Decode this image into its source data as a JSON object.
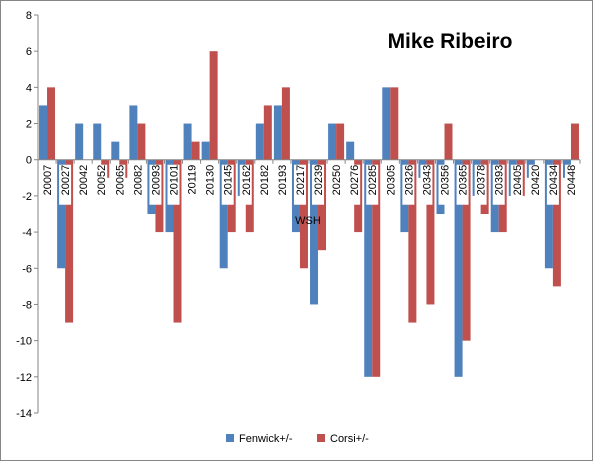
{
  "chart_data": {
    "type": "bar",
    "title": "Mike Ribeiro",
    "categories": [
      "20007",
      "20027",
      "20042",
      "20052",
      "20065",
      "20082",
      "20093",
      "20101",
      "20119",
      "20130",
      "20145",
      "20162",
      "20182",
      "20193",
      "20217",
      "20239",
      "20250",
      "20276",
      "20285",
      "20305",
      "20326",
      "20343",
      "20356",
      "20365",
      "20378",
      "20393",
      "20405",
      "20420",
      "20434",
      "20448"
    ],
    "group_label": "WSH",
    "series": [
      {
        "name": "Fenwick+/-",
        "color": "#4F81BD",
        "values": [
          3,
          -6,
          2,
          2,
          1,
          3,
          -3,
          -4,
          2,
          1,
          -6,
          -2,
          2,
          3,
          -4,
          -8,
          2,
          1,
          -12,
          4,
          -4,
          -1,
          -3,
          -12,
          -2,
          -4,
          -2,
          -1,
          -6,
          -1
        ]
      },
      {
        "name": "Corsi+/-",
        "color": "#C0504D",
        "values": [
          4,
          -9,
          0,
          -1,
          -1,
          2,
          -4,
          -9,
          1,
          6,
          -4,
          -4,
          3,
          4,
          -6,
          -5,
          2,
          -4,
          -12,
          4,
          -9,
          -8,
          2,
          -10,
          -3,
          -4,
          -2,
          0,
          -7,
          2
        ]
      }
    ],
    "ylim": [
      -14,
      8
    ],
    "yticks": [
      -14,
      -12,
      -10,
      -8,
      -6,
      -4,
      -2,
      0,
      2,
      4,
      6,
      8
    ],
    "grid": false,
    "legend_position": "bottom"
  }
}
